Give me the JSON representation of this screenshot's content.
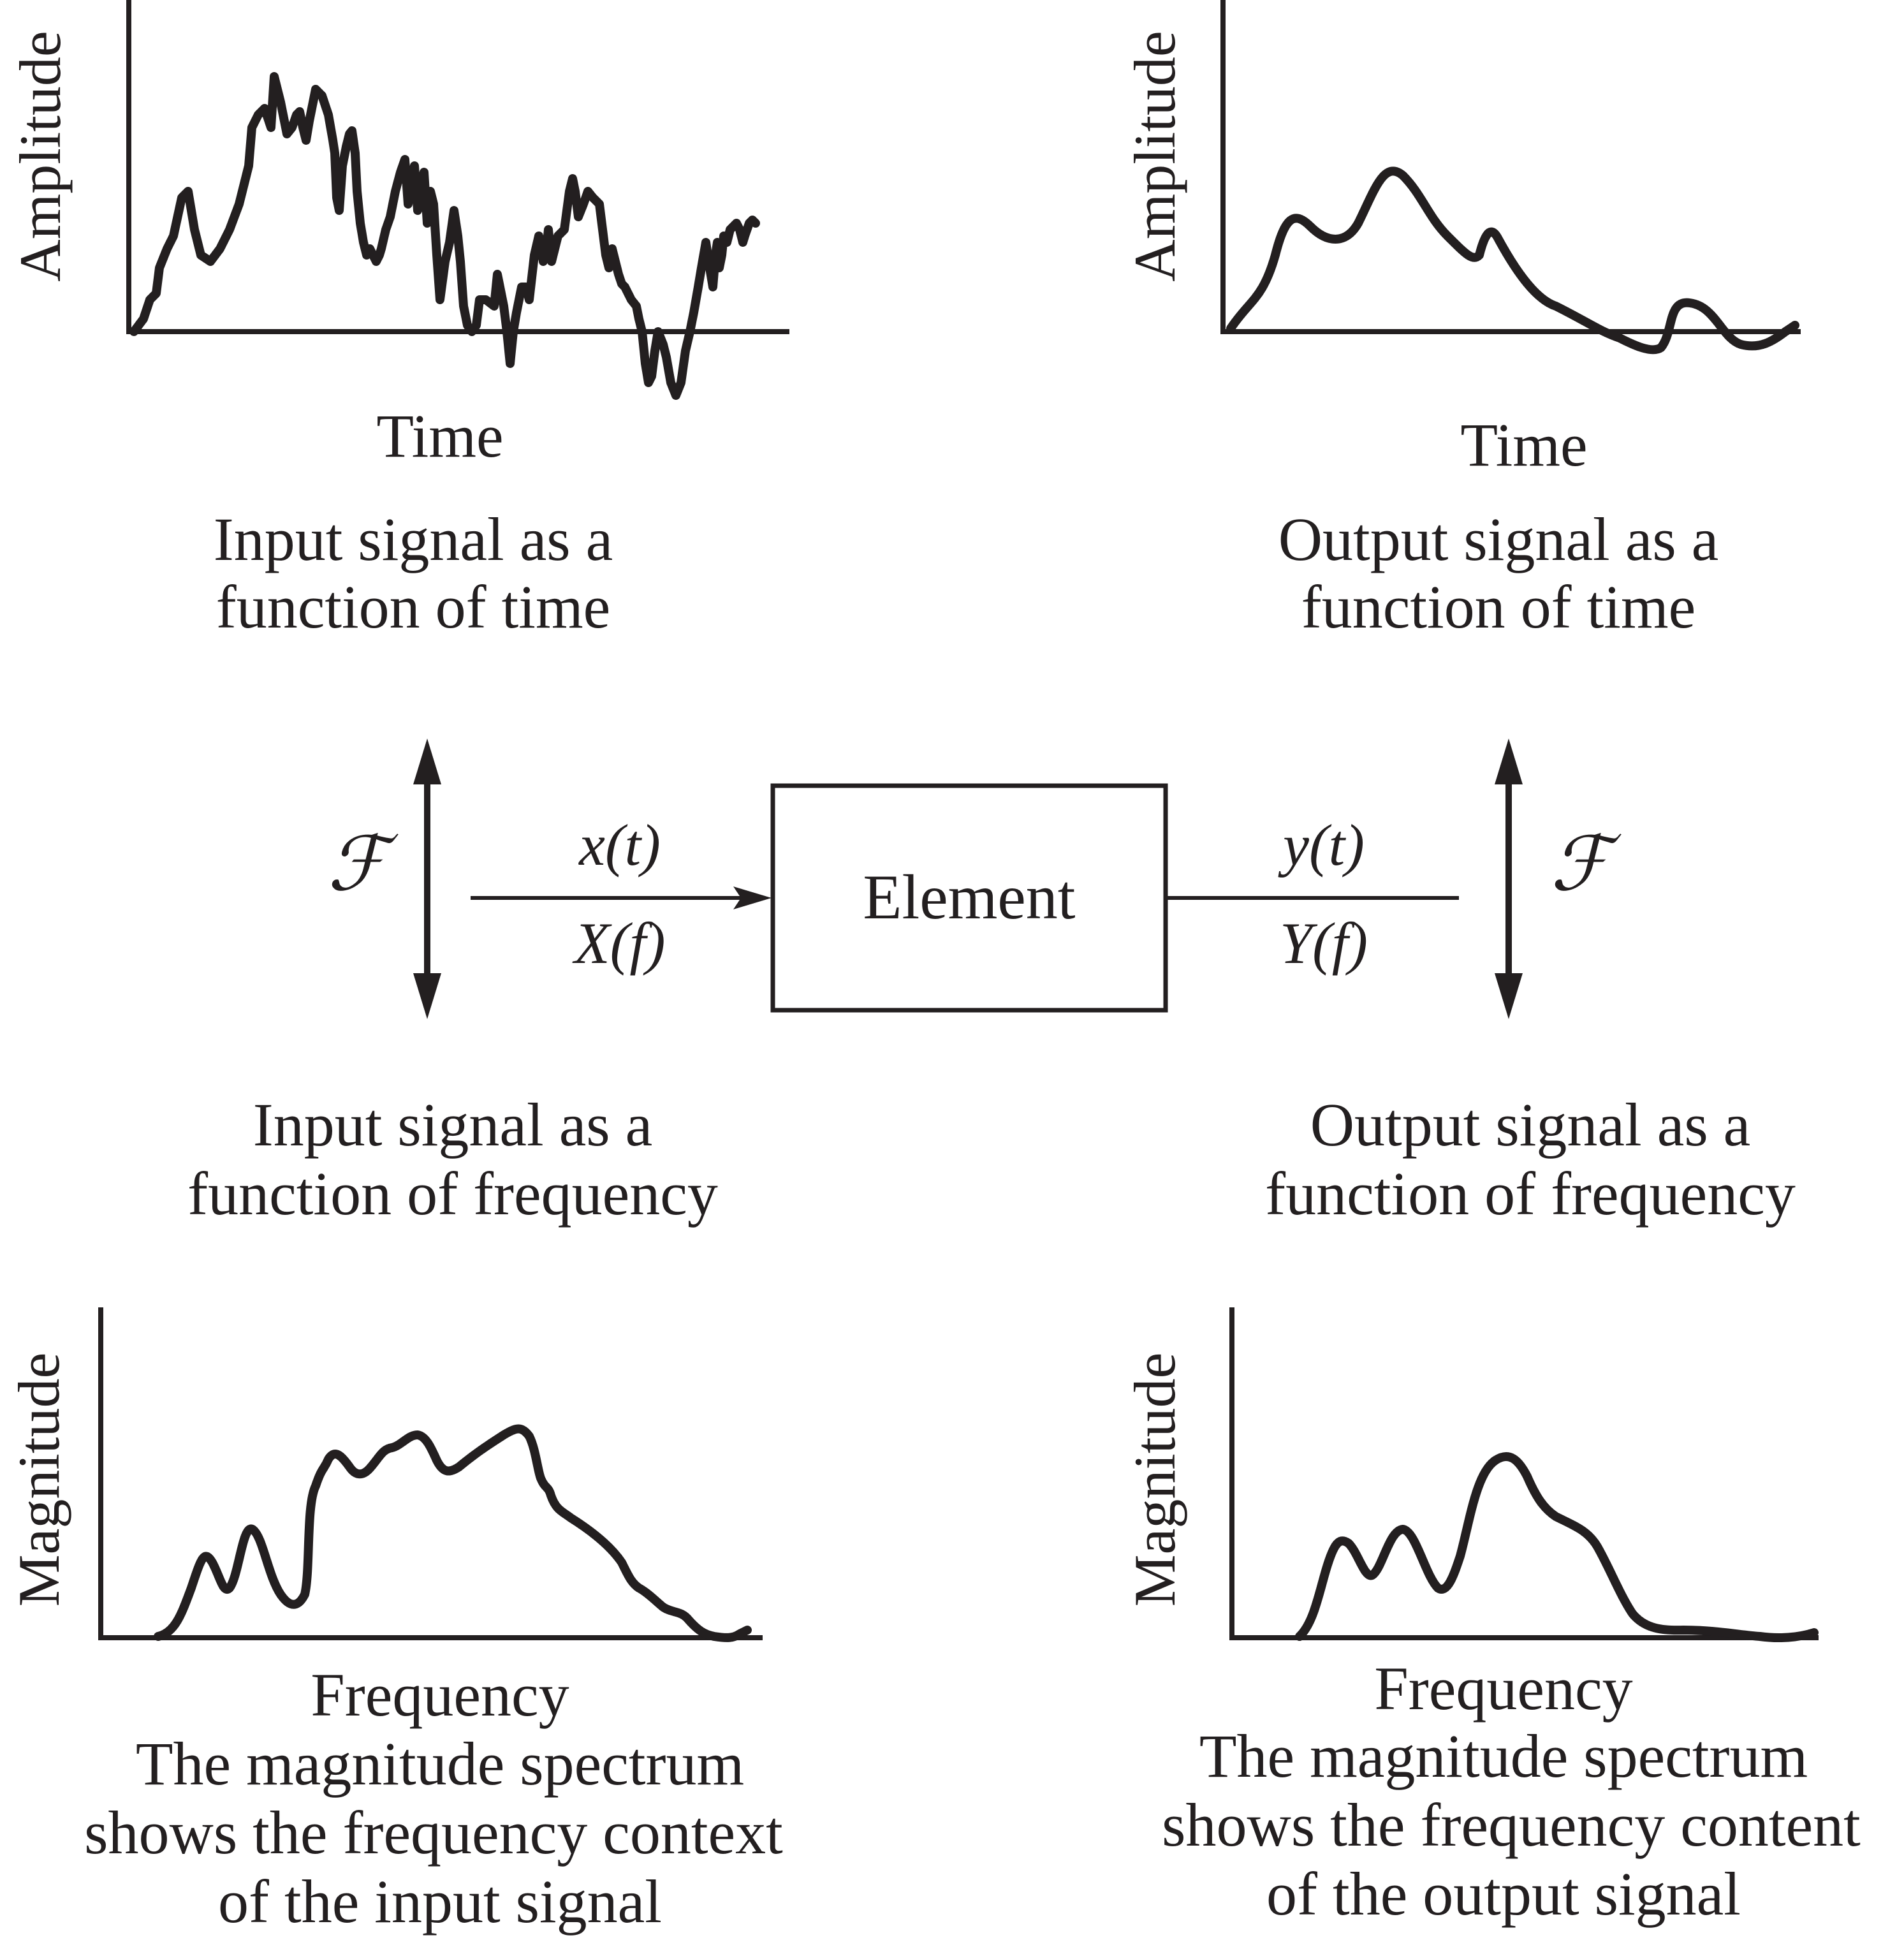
{
  "panels": {
    "input_time": {
      "ylabel": "Amplitude",
      "xlabel": "Time",
      "caption": [
        "Input signal as a",
        "function of time"
      ]
    },
    "output_time": {
      "ylabel": "Amplitude",
      "xlabel": "Time",
      "caption": [
        "Output signal as a",
        "function of time"
      ]
    },
    "input_freq": {
      "caption": [
        "Input signal as a",
        "function of frequency"
      ],
      "ylabel": "Magnitude",
      "xlabel": "Frequency",
      "note": [
        "The magnitude spectrum",
        "shows the frequency context",
        "of the input signal"
      ]
    },
    "output_freq": {
      "caption": [
        "Output signal as a",
        "function of frequency"
      ],
      "ylabel": "Magnitude",
      "xlabel": "Frequency",
      "note": [
        "The magnitude spectrum",
        "shows the frequency content",
        "of the output signal"
      ]
    }
  },
  "block": {
    "label": "Element",
    "input_time": "x(t)",
    "input_freq": "X(f)",
    "output_time": "y(t)",
    "output_freq": "Y(f)",
    "transform_symbol": "ℱ"
  },
  "colors": {
    "ink": "#231f20",
    "background": "#ffffff"
  }
}
